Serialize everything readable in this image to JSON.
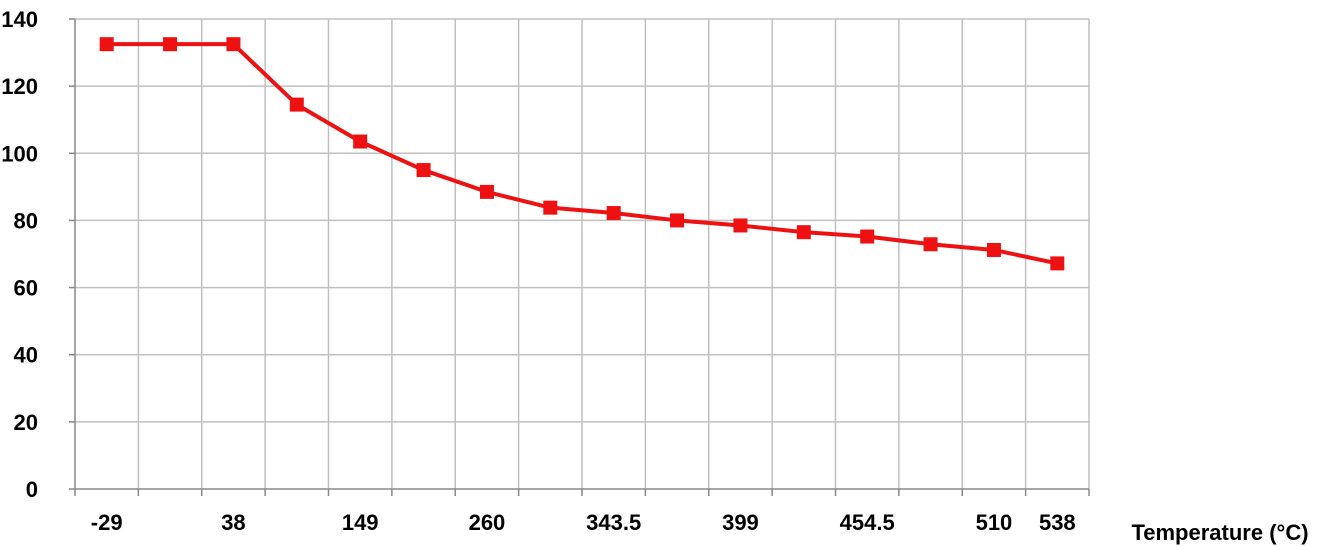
{
  "chart_data": {
    "type": "line",
    "title": "",
    "xlabel": "Temperature (°C)",
    "ylabel": "",
    "ylim": [
      0,
      140
    ],
    "yticks": [
      0,
      20,
      40,
      60,
      80,
      100,
      120,
      140
    ],
    "grid": true,
    "legend": "none",
    "x": [
      "-29",
      "",
      "38",
      "",
      "149",
      "",
      "260",
      "",
      "343.5",
      "",
      "399",
      "",
      "454.5",
      "",
      "510",
      "538"
    ],
    "series": [
      {
        "values": [
          132.5,
          132.5,
          132.5,
          114.5,
          103.5,
          95.0,
          88.5,
          83.8,
          82.2,
          80.0,
          78.5,
          76.5,
          75.2,
          72.9,
          71.2,
          67.2
        ],
        "color": "#ee1111"
      }
    ],
    "colors": {
      "line": "#ee1111",
      "grid": "#c0c0c0",
      "axis": "#888888"
    }
  }
}
